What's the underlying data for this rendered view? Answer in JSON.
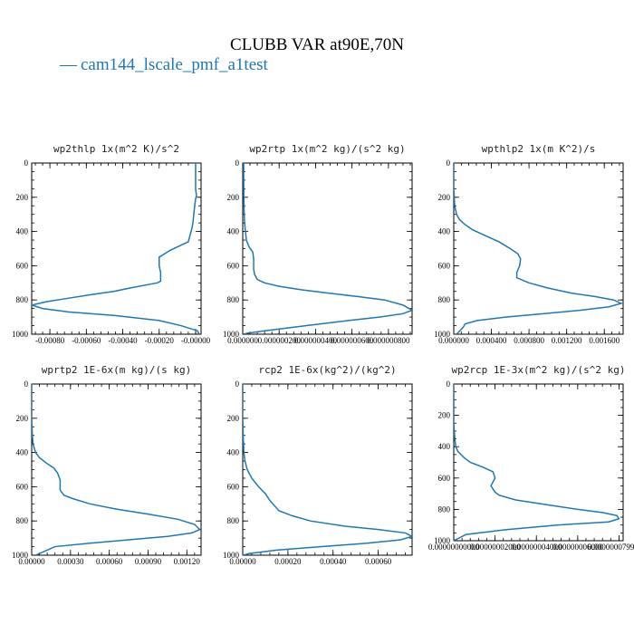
{
  "figure": {
    "title": "CLUBB VAR at90E,70N",
    "legend_label": "cam144_lscale_pmf_a1test",
    "legend_marker": "—",
    "series_color": "#1f77b4"
  },
  "chart_data": [
    {
      "type": "line",
      "title": "wp2thlp  1x(m^2 K)/s^2",
      "series_name": "cam144_lscale_pmf_a1test",
      "xlim": [
        -0.0009,
        3e-05
      ],
      "ylim": [
        0,
        1000
      ],
      "y_inverted": true,
      "yticks": [
        "0",
        "200",
        "400",
        "600",
        "800",
        "1000"
      ],
      "xticks": [
        {
          "v": -0.0008,
          "label": "-0.00080"
        },
        {
          "v": -0.0006,
          "label": "-0.00060"
        },
        {
          "v": -0.0004,
          "label": "-0.00040"
        },
        {
          "v": -0.0002,
          "label": "-0.00020"
        },
        {
          "v": 0.0,
          "label": "-0.00000"
        }
      ],
      "x": [
        0.0,
        0.0,
        0.0,
        5e-06,
        0.0,
        -5e-06,
        -1e-05,
        -1.5e-05,
        -2e-05,
        -3e-05,
        -4e-05,
        -8e-05,
        -0.00014,
        -0.0002,
        -0.0002,
        -0.000192,
        -0.000192,
        -0.00021,
        -0.00026,
        -0.00036,
        -0.00045,
        -0.00058,
        -0.0007,
        -0.00082,
        -0.0009,
        -0.00084,
        -0.0007,
        -0.00045,
        -0.0002,
        -8e-05,
        1e-05,
        2e-05
      ],
      "y": [
        0,
        100,
        150,
        190,
        210,
        250,
        300,
        350,
        380,
        420,
        460,
        480,
        510,
        550,
        600,
        640,
        690,
        700,
        710,
        730,
        750,
        770,
        790,
        810,
        830,
        850,
        870,
        890,
        920,
        950,
        980,
        1000
      ]
    },
    {
      "type": "line",
      "title": "wp2rtp  1x(m^2 kg)/(s^2 kg)",
      "series_name": "cam144_lscale_pmf_a1test",
      "xlim": [
        0,
        9.3e-07
      ],
      "ylim": [
        0,
        1000
      ],
      "y_inverted": true,
      "yticks": [
        "0",
        "200",
        "400",
        "600",
        "800",
        "1000"
      ],
      "xticks": [
        {
          "v": 0.0,
          "label": "0.000000"
        },
        {
          "v": 2e-07,
          "label": "0.000000200"
        },
        {
          "v": 4e-07,
          "label": "0.000000400"
        },
        {
          "v": 6e-07,
          "label": "0.000000600"
        },
        {
          "v": 8e-07,
          "label": "0.000000800"
        }
      ],
      "x": [
        5e-09,
        5e-09,
        6e-09,
        8e-09,
        1e-08,
        1.5e-08,
        2e-08,
        3.5e-08,
        5.5e-08,
        6e-08,
        6e-08,
        6.5e-08,
        8e-08,
        1.2e-07,
        2e-07,
        3.2e-07,
        4.7e-07,
        6.3e-07,
        7.8e-07,
        8.8e-07,
        9.3e-07,
        8.8e-07,
        7.5e-07,
        5.8e-07,
        3.5e-07,
        1.2e-07,
        2e-08,
        5e-09
      ],
      "y": [
        0,
        100,
        200,
        300,
        350,
        400,
        450,
        490,
        520,
        560,
        620,
        650,
        680,
        700,
        720,
        740,
        760,
        780,
        800,
        830,
        860,
        880,
        900,
        920,
        950,
        980,
        995,
        1000
      ]
    },
    {
      "type": "line",
      "title": "wpthlp2  1x(m K^2)/s",
      "series_name": "cam144_lscale_pmf_a1test",
      "xlim": [
        0,
        0.0018
      ],
      "ylim": [
        0,
        1000
      ],
      "y_inverted": true,
      "yticks": [
        "0",
        "200",
        "400",
        "600",
        "800",
        "1000"
      ],
      "xticks": [
        {
          "v": 0.0,
          "label": "0.000000"
        },
        {
          "v": 0.0004,
          "label": "0.000400"
        },
        {
          "v": 0.0008,
          "label": "0.000800"
        },
        {
          "v": 0.0012,
          "label": "0.001200"
        },
        {
          "v": 0.0016,
          "label": "0.001600"
        }
      ],
      "x": [
        0.0,
        0.0,
        1e-05,
        3e-05,
        6e-05,
        0.00012,
        0.0002,
        0.00032,
        0.00048,
        0.0006,
        0.00068,
        0.00071,
        0.0007,
        0.00067,
        0.00067,
        0.0008,
        0.001,
        0.00125,
        0.0015,
        0.0017,
        0.00178,
        0.00165,
        0.00135,
        0.00095,
        0.00055,
        0.00025,
        0.00012,
        0.0001,
        3e-05
      ],
      "y": [
        0,
        150,
        250,
        300,
        330,
        360,
        390,
        420,
        460,
        500,
        530,
        560,
        600,
        640,
        670,
        700,
        730,
        760,
        780,
        800,
        820,
        840,
        860,
        880,
        900,
        920,
        940,
        960,
        1000
      ]
    },
    {
      "type": "line",
      "title": "wprtp2  1E-6x(m kg)/(s kg)",
      "series_name": "cam144_lscale_pmf_a1test",
      "xlim": [
        0,
        0.00131
      ],
      "ylim": [
        0,
        1000
      ],
      "y_inverted": true,
      "yticks": [
        "0",
        "200",
        "400",
        "600",
        "800",
        "1000"
      ],
      "xticks": [
        {
          "v": 0.0,
          "label": "0.00000"
        },
        {
          "v": 0.0003,
          "label": "0.00030"
        },
        {
          "v": 0.0006,
          "label": "0.00060"
        },
        {
          "v": 0.0009,
          "label": "0.00090"
        },
        {
          "v": 0.0012,
          "label": "0.00120"
        }
      ],
      "x": [
        0.0,
        0.0,
        5e-06,
        1e-05,
        3e-05,
        6e-05,
        0.00011,
        0.00017,
        0.0002,
        0.00022,
        0.00022,
        0.00025,
        0.00032,
        0.00045,
        0.00065,
        0.0009,
        0.00113,
        0.00126,
        0.0013,
        0.00124,
        0.00105,
        0.00075,
        0.00045,
        0.00018,
        3e-05
      ],
      "y": [
        0,
        200,
        300,
        350,
        400,
        430,
        460,
        490,
        520,
        560,
        620,
        650,
        670,
        700,
        730,
        760,
        790,
        820,
        850,
        870,
        890,
        910,
        930,
        950,
        1000
      ]
    },
    {
      "type": "line",
      "title": "rcp2  1E-6x(kg^2)/(kg^2)",
      "series_name": "cam144_lscale_pmf_a1test",
      "xlim": [
        0,
        0.00075
      ],
      "ylim": [
        0,
        1000
      ],
      "y_inverted": true,
      "yticks": [
        "0",
        "200",
        "400",
        "600",
        "800",
        "1000"
      ],
      "xticks": [
        {
          "v": 0.0,
          "label": "0.00000"
        },
        {
          "v": 0.0002,
          "label": "0.00020"
        },
        {
          "v": 0.0004,
          "label": "0.00040"
        },
        {
          "v": 0.0006,
          "label": "0.00060"
        }
      ],
      "x": [
        0.0,
        0.0,
        2e-06,
        5e-06,
        1e-05,
        2e-05,
        4e-05,
        7e-05,
        0.0001,
        0.00012,
        0.00014,
        0.00016,
        0.00022,
        0.0003,
        0.00045,
        0.0006,
        0.00072,
        0.00075,
        0.0007,
        0.00055,
        0.00035,
        0.00015,
        3e-05,
        0.0
      ],
      "y": [
        0,
        200,
        300,
        400,
        450,
        500,
        550,
        600,
        640,
        680,
        710,
        740,
        770,
        800,
        830,
        850,
        870,
        890,
        910,
        930,
        950,
        970,
        990,
        1000
      ]
    },
    {
      "type": "line",
      "title": "wp2rcp  1E-3x(m^2 kg)/(s^2 kg)",
      "series_name": "cam144_lscale_pmf_a1test",
      "xlim": [
        0,
        8.2e-08
      ],
      "ylim": [
        0,
        1000
      ],
      "y_inverted": true,
      "yticks": [
        "0",
        "200",
        "400",
        "600",
        "800",
        "1000"
      ],
      "xticks": [
        {
          "v": 0.0,
          "label": "0.00000000000"
        },
        {
          "v": 2e-08,
          "label": "0.00000002000"
        },
        {
          "v": 4e-08,
          "label": "0.00000004000"
        },
        {
          "v": 6e-08,
          "label": "0.00000006000"
        },
        {
          "v": 8e-08,
          "label": "0.00000007999999"
        }
      ],
      "x": [
        0.0,
        0.0,
        5e-10,
        1e-09,
        2e-09,
        5e-09,
        8e-09,
        1.4e-08,
        1.9e-08,
        2e-08,
        1.8e-08,
        2e-08,
        2.2e-08,
        3e-08,
        4.5e-08,
        6e-08,
        7.2e-08,
        7.9e-08,
        8e-08,
        7.5e-08,
        5e-08,
        2.5e-08,
        6e-09,
        0.0
      ],
      "y": [
        0,
        250,
        350,
        400,
        430,
        470,
        500,
        530,
        560,
        600,
        650,
        690,
        710,
        740,
        770,
        800,
        820,
        840,
        860,
        880,
        900,
        930,
        960,
        1000
      ]
    }
  ]
}
